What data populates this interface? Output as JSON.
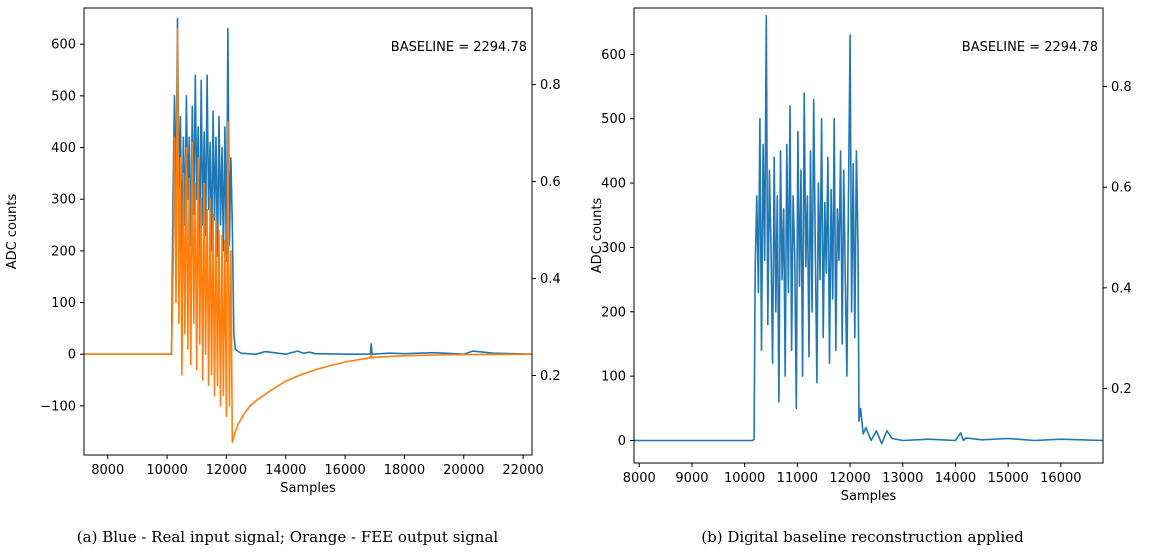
{
  "colors": {
    "blue": "#1f77b4",
    "orange": "#ff7f0e"
  },
  "chart_data": [
    {
      "type": "line",
      "caption": "(a) Blue - Real input signal; Orange - FEE output signal",
      "annotation": "BASELINE = 2294.78",
      "xlabel": "Samples",
      "ylabel": "ADC counts",
      "xlim": [
        7200,
        22300
      ],
      "ylim": [
        -195,
        670
      ],
      "y2lim": [
        0.036,
        0.958
      ],
      "x_ticks": [
        8000,
        10000,
        12000,
        14000,
        16000,
        18000,
        20000,
        22000
      ],
      "x_tick_labels": [
        "8000",
        "10000",
        "12000",
        "14000",
        "16000",
        "18000",
        "20000",
        "22000"
      ],
      "y_ticks": [
        -100,
        0,
        100,
        200,
        300,
        400,
        500,
        600
      ],
      "y_tick_labels": [
        "−100",
        "0",
        "100",
        "200",
        "300",
        "400",
        "500",
        "600"
      ],
      "y2_ticks": [
        0.2,
        0.4,
        0.6,
        0.8
      ],
      "y2_tick_labels": [
        "0.2",
        "0.4",
        "0.6",
        "0.8"
      ],
      "grid": false,
      "series": [
        {
          "color": "#1f77b4",
          "x": [
            7200,
            10100,
            10150,
            10200,
            10250,
            10300,
            10350,
            10400,
            10450,
            10500,
            10550,
            10600,
            10650,
            10700,
            10750,
            10800,
            10850,
            10900,
            10950,
            11000,
            11050,
            11100,
            11150,
            11200,
            11250,
            11300,
            11350,
            11400,
            11450,
            11500,
            11550,
            11600,
            11650,
            11700,
            11750,
            11800,
            11850,
            11900,
            11950,
            12000,
            12050,
            12100,
            12150,
            12200,
            12250,
            12300,
            12400,
            12500,
            12700,
            13000,
            13300,
            13600,
            14000,
            14400,
            14600,
            14800,
            15000,
            16000,
            16850,
            16880,
            16910,
            17500,
            18000,
            19000,
            20000,
            20300,
            21000,
            22300
          ],
          "y": [
            0,
            0,
            0,
            300,
            500,
            300,
            650,
            320,
            460,
            200,
            420,
            250,
            500,
            300,
            420,
            210,
            480,
            270,
            540,
            300,
            440,
            190,
            530,
            250,
            430,
            230,
            540,
            280,
            410,
            200,
            470,
            260,
            420,
            190,
            460,
            250,
            400,
            200,
            440,
            180,
            630,
            210,
            380,
            250,
            40,
            10,
            5,
            2,
            1,
            0,
            5,
            3,
            0,
            6,
            2,
            4,
            1,
            0,
            0,
            20,
            0,
            2,
            1,
            3,
            0,
            6,
            2,
            0
          ]
        },
        {
          "color": "#ff7f0e",
          "x": [
            7200,
            10100,
            10150,
            10200,
            10250,
            10300,
            10350,
            10400,
            10450,
            10500,
            10550,
            10600,
            10650,
            10700,
            10750,
            10800,
            10850,
            10900,
            10950,
            11000,
            11050,
            11100,
            11150,
            11200,
            11250,
            11300,
            11350,
            11400,
            11450,
            11500,
            11550,
            11600,
            11650,
            11700,
            11750,
            11800,
            11850,
            11900,
            11950,
            12000,
            12050,
            12100,
            12150,
            12200,
            12300,
            12400,
            12600,
            12800,
            13000,
            13500,
            14000,
            14500,
            15000,
            15500,
            16000,
            16500,
            16850,
            16880,
            16910,
            17000,
            18000,
            19000,
            20000,
            21000,
            22300
          ],
          "y": [
            0,
            0,
            0,
            150,
            420,
            100,
            630,
            60,
            380,
            -40,
            350,
            40,
            400,
            10,
            340,
            -20,
            410,
            60,
            330,
            -30,
            380,
            20,
            300,
            -50,
            330,
            0,
            280,
            -60,
            300,
            -40,
            270,
            -80,
            260,
            -60,
            240,
            -100,
            230,
            -80,
            220,
            -120,
            450,
            -100,
            200,
            -170,
            -150,
            -135,
            -115,
            -100,
            -90,
            -70,
            -52,
            -40,
            -30,
            -22,
            -15,
            -10,
            -7,
            0,
            -7,
            -6,
            -3,
            -1.5,
            -0.8,
            -0.3,
            0
          ]
        }
      ]
    },
    {
      "type": "line",
      "caption": "(b) Digital baseline reconstruction applied",
      "annotation": "BASELINE = 2294.78",
      "xlabel": "Samples",
      "ylabel": "ADC counts",
      "xlim": [
        7900,
        16800
      ],
      "ylim": [
        -35,
        672
      ],
      "y2lim": [
        0.052,
        0.956
      ],
      "x_ticks": [
        8000,
        9000,
        10000,
        11000,
        12000,
        13000,
        14000,
        15000,
        16000
      ],
      "x_tick_labels": [
        "8000",
        "9000",
        "10000",
        "11000",
        "12000",
        "13000",
        "14000",
        "15000",
        "16000"
      ],
      "y_ticks": [
        0,
        100,
        200,
        300,
        400,
        500,
        600
      ],
      "y_tick_labels": [
        "0",
        "100",
        "200",
        "300",
        "400",
        "500",
        "600"
      ],
      "y2_ticks": [
        0.2,
        0.4,
        0.6,
        0.8
      ],
      "y2_tick_labels": [
        "0.2",
        "0.4",
        "0.6",
        "0.8"
      ],
      "grid": false,
      "series": [
        {
          "color": "#1f77b4",
          "x": [
            7900,
            10150,
            10180,
            10200,
            10230,
            10260,
            10290,
            10320,
            10350,
            10380,
            10410,
            10440,
            10470,
            10500,
            10530,
            10560,
            10590,
            10620,
            10650,
            10680,
            10710,
            10740,
            10770,
            10800,
            10830,
            10860,
            10890,
            10920,
            10950,
            10980,
            11010,
            11040,
            11070,
            11100,
            11130,
            11160,
            11190,
            11220,
            11250,
            11280,
            11310,
            11340,
            11370,
            11400,
            11430,
            11460,
            11490,
            11520,
            11550,
            11580,
            11610,
            11640,
            11670,
            11700,
            11730,
            11760,
            11790,
            11820,
            11850,
            11880,
            11910,
            11940,
            11970,
            12000,
            12030,
            12060,
            12090,
            12120,
            12150,
            12170,
            12200,
            12250,
            12300,
            12400,
            12500,
            12600,
            12700,
            12800,
            13000,
            13500,
            14000,
            14100,
            14150,
            14200,
            14500,
            15000,
            15500,
            16000,
            16800
          ],
          "y": [
            0,
            0,
            2,
            270,
            380,
            230,
            500,
            140,
            460,
            280,
            660,
            180,
            420,
            300,
            120,
            440,
            200,
            380,
            60,
            450,
            250,
            360,
            100,
            460,
            230,
            520,
            140,
            380,
            290,
            50,
            480,
            240,
            420,
            100,
            540,
            270,
            380,
            130,
            450,
            200,
            530,
            300,
            90,
            400,
            250,
            500,
            160,
            370,
            260,
            440,
            120,
            390,
            220,
            500,
            140,
            360,
            280,
            450,
            150,
            420,
            250,
            100,
            380,
            630,
            200,
            430,
            160,
            450,
            300,
            30,
            50,
            10,
            20,
            0,
            15,
            -5,
            15,
            3,
            0,
            2,
            0,
            12,
            0,
            4,
            1,
            3,
            0,
            2,
            0
          ]
        }
      ]
    }
  ]
}
